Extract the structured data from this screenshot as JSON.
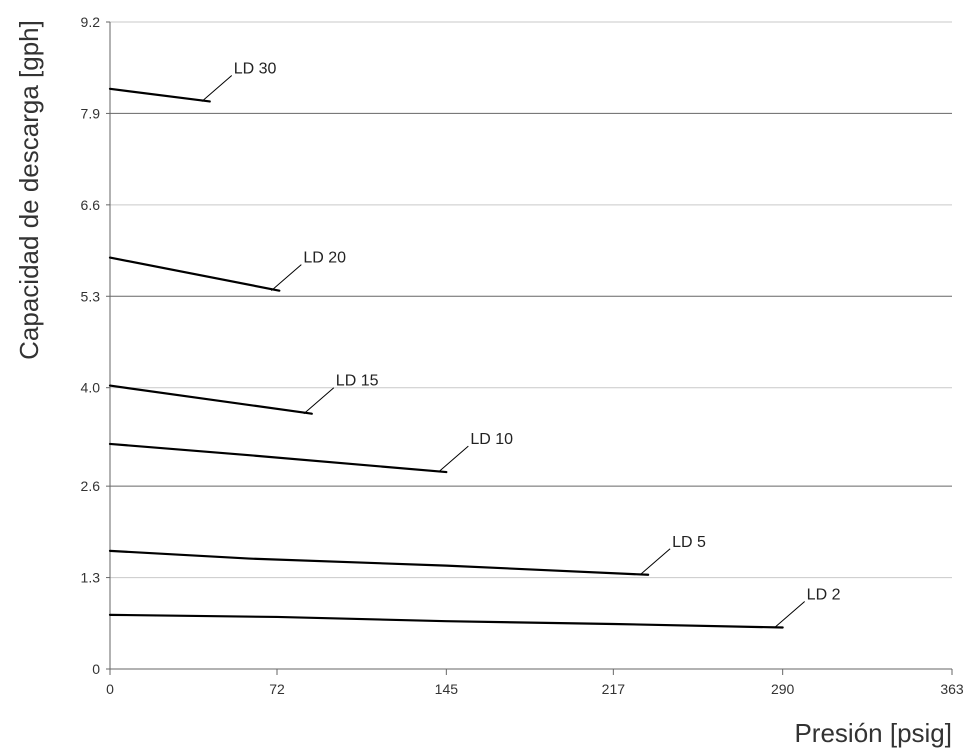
{
  "chart_data": {
    "type": "line",
    "title": "",
    "xlabel": "Presión [psig]",
    "ylabel": "Capacidad de descarga [gph]",
    "xlim": [
      0,
      363
    ],
    "ylim": [
      0,
      9.2
    ],
    "x_ticks": [
      "0",
      "72",
      "145",
      "217",
      "290",
      "363"
    ],
    "y_ticks": [
      "0",
      "1.3",
      "2.6",
      "4.0",
      "5.3",
      "6.6",
      "7.9",
      "9.2"
    ],
    "grid": true,
    "legend": "none",
    "series": [
      {
        "name": "LD 30",
        "points": [
          [
            0,
            8.25
          ],
          [
            43,
            8.07
          ]
        ]
      },
      {
        "name": "LD 20",
        "points": [
          [
            0,
            5.85
          ],
          [
            73,
            5.38
          ]
        ]
      },
      {
        "name": "LD 15",
        "points": [
          [
            0,
            4.03
          ],
          [
            87,
            3.63
          ]
        ]
      },
      {
        "name": "LD 10",
        "points": [
          [
            0,
            3.2
          ],
          [
            60,
            3.04
          ],
          [
            145,
            2.8
          ]
        ]
      },
      {
        "name": "LD 5",
        "points": [
          [
            0,
            1.68
          ],
          [
            60,
            1.57
          ],
          [
            145,
            1.47
          ],
          [
            232,
            1.34
          ]
        ]
      },
      {
        "name": "LD 2",
        "points": [
          [
            0,
            0.77
          ],
          [
            72,
            0.74
          ],
          [
            145,
            0.68
          ],
          [
            217,
            0.64
          ],
          [
            290,
            0.59
          ]
        ]
      }
    ],
    "colors": {
      "line": "#000000",
      "grid": "#c9c9c9",
      "axis": "#666666",
      "text": "#333333"
    }
  }
}
